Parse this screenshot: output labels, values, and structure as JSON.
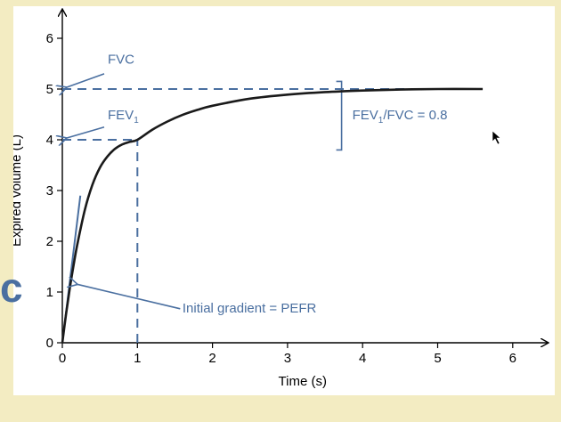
{
  "colors": {
    "background": "#f3ecc2",
    "panel": "#ffffff",
    "axis": "#000000",
    "curve": "#1a1a1a",
    "annotation": "#4a6fa0"
  },
  "stray_glyph": "c",
  "chart_data": {
    "type": "line",
    "title": "",
    "xlabel": "Time (s)",
    "ylabel": "Expired volume (L)",
    "xlim": [
      0,
      6.3
    ],
    "ylim": [
      0,
      6.5
    ],
    "x_ticks": [
      0,
      1,
      2,
      3,
      4,
      5,
      6
    ],
    "y_ticks": [
      0,
      1,
      2,
      3,
      4,
      5,
      6
    ],
    "grid": false,
    "series": [
      {
        "name": "Expired volume",
        "x": [
          0,
          0.05,
          0.1,
          0.15,
          0.2,
          0.3,
          0.4,
          0.5,
          0.6,
          0.7,
          0.8,
          0.9,
          1.0,
          1.2,
          1.4,
          1.6,
          1.8,
          2.0,
          2.5,
          3.0,
          3.5,
          4.0,
          4.5,
          5.0,
          5.6
        ],
        "y": [
          0,
          0.57,
          1.08,
          1.53,
          1.94,
          2.62,
          3.11,
          3.45,
          3.67,
          3.82,
          3.91,
          3.96,
          4.0,
          4.2,
          4.36,
          4.49,
          4.59,
          4.67,
          4.81,
          4.89,
          4.94,
          4.97,
          4.99,
          5.0,
          5.0
        ]
      }
    ],
    "reference_lines": [
      {
        "name": "FVC level",
        "orientation": "horizontal",
        "y": 5,
        "x_from": 0,
        "x_to": 5.6
      },
      {
        "name": "FEV1 level",
        "orientation": "horizontal",
        "y": 4,
        "x_from": 0,
        "x_to": 1
      },
      {
        "name": "One second",
        "orientation": "vertical",
        "x": 1,
        "y_from": 0,
        "y_to": 4
      }
    ],
    "tangent_line": {
      "name": "Initial gradient",
      "x": [
        0,
        0.24
      ],
      "y": [
        0,
        2.9
      ]
    },
    "bracket": {
      "name": "FEV1/FVC bracket",
      "x": 3.72,
      "y_from": 3.8,
      "y_to": 5.15
    },
    "annotations": [
      {
        "id": "fvc",
        "text": "FVC",
        "target": [
          0,
          5
        ]
      },
      {
        "id": "fev1",
        "text": "FEV",
        "subscript": "1",
        "target": [
          0,
          4
        ]
      },
      {
        "id": "ratio",
        "text_before": "FEV",
        "subscript": "1",
        "text_after": "/FVC = 0.8"
      },
      {
        "id": "pefr",
        "text": "Initial gradient = PEFR",
        "target": [
          0.18,
          1.15
        ]
      }
    ]
  }
}
